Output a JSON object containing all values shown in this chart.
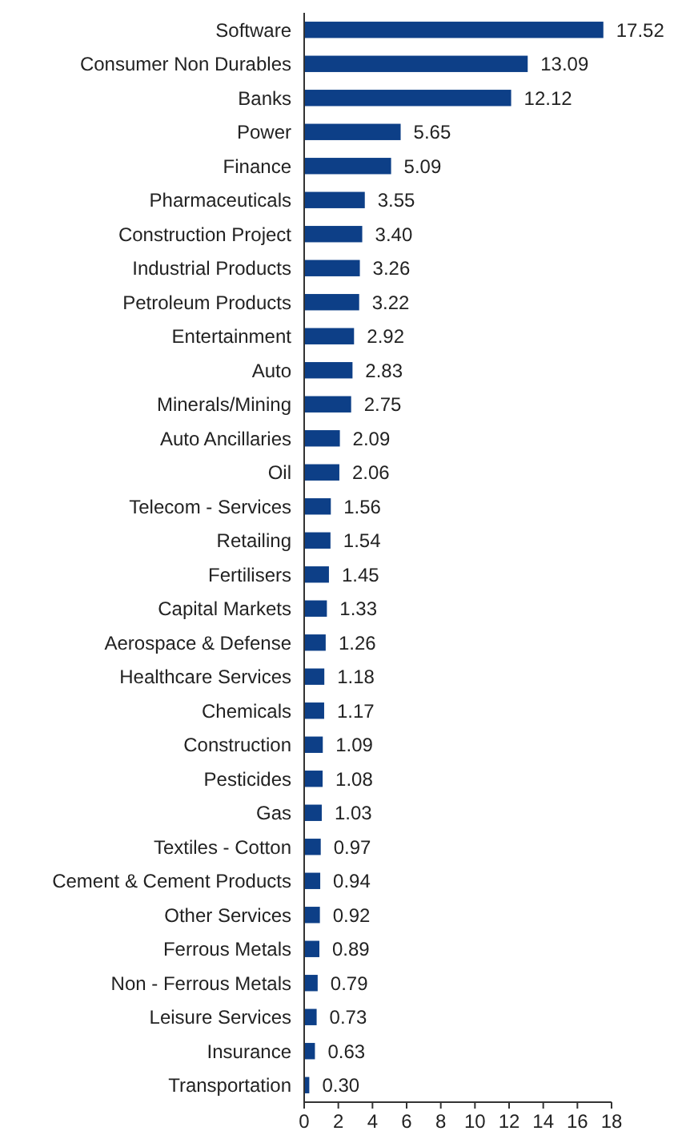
{
  "chart_data": {
    "type": "bar",
    "orientation": "horizontal",
    "categories": [
      "Software",
      "Consumer Non Durables",
      "Banks",
      "Power",
      "Finance",
      "Pharmaceuticals",
      "Construction Project",
      "Industrial Products",
      "Petroleum Products",
      "Entertainment",
      "Auto",
      "Minerals/Mining",
      "Auto Ancillaries",
      "Oil",
      "Telecom - Services",
      "Retailing",
      "Fertilisers",
      "Capital Markets",
      "Aerospace & Defense",
      "Healthcare Services",
      "Chemicals",
      "Construction",
      "Pesticides",
      "Gas",
      "Textiles - Cotton",
      "Cement & Cement Products",
      "Other Services",
      "Ferrous Metals",
      "Non - Ferrous Metals",
      "Leisure Services",
      "Insurance",
      "Transportation"
    ],
    "values": [
      17.52,
      13.09,
      12.12,
      5.65,
      5.09,
      3.55,
      3.4,
      3.26,
      3.22,
      2.92,
      2.83,
      2.75,
      2.09,
      2.06,
      1.56,
      1.54,
      1.45,
      1.33,
      1.26,
      1.18,
      1.17,
      1.09,
      1.08,
      1.03,
      0.97,
      0.94,
      0.92,
      0.89,
      0.79,
      0.73,
      0.63,
      0.3
    ],
    "value_labels": [
      "17.52",
      "13.09",
      "12.12",
      "5.65",
      "5.09",
      "3.55",
      "3.40",
      "3.26",
      "3.22",
      "2.92",
      "2.83",
      "2.75",
      "2.09",
      "2.06",
      "1.56",
      "1.54",
      "1.45",
      "1.33",
      "1.26",
      "1.18",
      "1.17",
      "1.09",
      "1.08",
      "1.03",
      "0.97",
      "0.94",
      "0.92",
      "0.89",
      "0.79",
      "0.73",
      "0.63",
      "0.30"
    ],
    "color": "#0d3f87",
    "xlim": [
      0,
      18
    ],
    "xticks": [
      0,
      2,
      4,
      6,
      8,
      10,
      12,
      14,
      16,
      18
    ],
    "grid": false
  }
}
